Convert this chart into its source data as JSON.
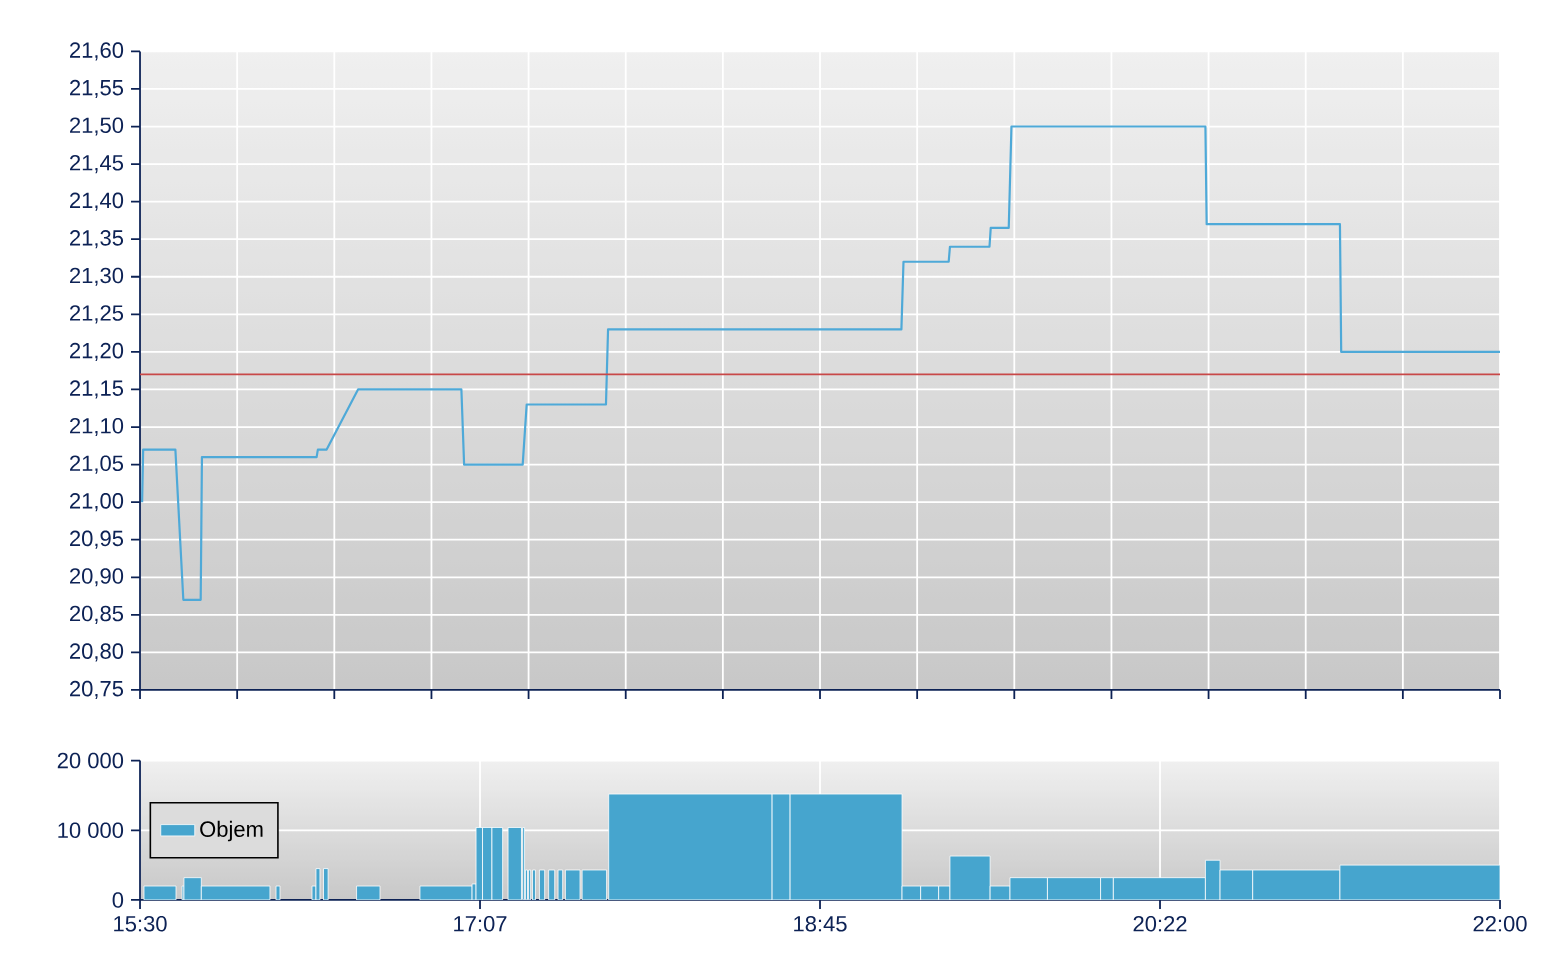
{
  "chart_data": [
    {
      "type": "line",
      "x": [
        15.51,
        15.515,
        15.669,
        15.707,
        15.79,
        15.796,
        16.344,
        16.35,
        16.392,
        16.542,
        17.036,
        17.049,
        17.329,
        17.348,
        17.727,
        17.737,
        19.139,
        19.149,
        19.365,
        19.371,
        19.56,
        19.566,
        19.652,
        19.665,
        20.592,
        20.598,
        21.235,
        21.241,
        22.0
      ],
      "values": [
        21.0,
        21.07,
        21.07,
        20.87,
        20.87,
        21.06,
        21.06,
        21.07,
        21.07,
        21.15,
        21.15,
        21.05,
        21.05,
        21.13,
        21.13,
        21.23,
        21.23,
        21.32,
        21.32,
        21.34,
        21.34,
        21.365,
        21.365,
        21.5,
        21.5,
        21.37,
        21.37,
        21.2,
        21.2
      ],
      "color": "#4ea9d8",
      "xlim": [
        15.5,
        22.0
      ],
      "xticks": [
        {
          "value": 15.5,
          "label": null
        },
        {
          "value": 15.9643,
          "label": null
        },
        {
          "value": 16.4286,
          "label": null
        },
        {
          "value": 16.8929,
          "label": null
        },
        {
          "value": 17.3571,
          "label": null
        },
        {
          "value": 17.8214,
          "label": null
        },
        {
          "value": 18.2857,
          "label": null
        },
        {
          "value": 18.75,
          "label": null
        },
        {
          "value": 19.2143,
          "label": null
        },
        {
          "value": 19.6786,
          "label": null
        },
        {
          "value": 20.1429,
          "label": null
        },
        {
          "value": 20.6071,
          "label": null
        },
        {
          "value": 21.0714,
          "label": null
        },
        {
          "value": 21.5357,
          "label": null
        },
        {
          "value": 22.0,
          "label": null
        }
      ],
      "ylim": [
        20.75,
        21.6
      ],
      "yticks": [
        {
          "value": 20.75,
          "label": "20,75"
        },
        {
          "value": 20.8,
          "label": "20,80"
        },
        {
          "value": 20.85,
          "label": "20,85"
        },
        {
          "value": 20.9,
          "label": "20,90"
        },
        {
          "value": 20.95,
          "label": "20,95"
        },
        {
          "value": 21.0,
          "label": "21,00"
        },
        {
          "value": 21.05,
          "label": "21,05"
        },
        {
          "value": 21.1,
          "label": "21,10"
        },
        {
          "value": 21.15,
          "label": "21,15"
        },
        {
          "value": 21.2,
          "label": "21,20"
        },
        {
          "value": 21.25,
          "label": "21,25"
        },
        {
          "value": 21.3,
          "label": "21,30"
        },
        {
          "value": 21.35,
          "label": "21,35"
        },
        {
          "value": 21.4,
          "label": "21,40"
        },
        {
          "value": 21.45,
          "label": "21,45"
        },
        {
          "value": 21.5,
          "label": "21,50"
        },
        {
          "value": 21.55,
          "label": "21,55"
        },
        {
          "value": 21.6,
          "label": "21,60"
        }
      ],
      "grid": true,
      "tick_labels": "y",
      "ref_lines": [
        {
          "axis": "y",
          "value": 21.17,
          "color": "#c84848"
        }
      ]
    },
    {
      "type": "histogram",
      "bins": [
        15.519,
        15.672,
        15.701,
        15.71,
        15.793,
        16.121,
        16.15,
        16.169,
        16.322,
        16.341,
        16.36,
        16.377,
        16.399,
        16.535,
        16.647,
        16.838,
        17.087,
        17.106,
        17.137,
        17.182,
        17.233,
        17.259,
        17.323,
        17.329,
        17.338,
        17.342,
        17.352,
        17.357,
        17.367,
        17.376,
        17.39,
        17.409,
        17.434,
        17.453,
        17.482,
        17.498,
        17.52,
        17.533,
        17.603,
        17.613,
        17.73,
        17.74,
        18.521,
        18.607,
        19.142,
        19.231,
        19.317,
        19.371,
        19.563,
        19.658,
        19.837,
        20.091,
        20.152,
        20.592,
        20.662,
        20.818,
        21.235,
        22.0
      ],
      "series": [
        {
          "name": "Objem",
          "color": "#46a5ce",
          "values": [
            2000,
            null,
            2000,
            3200,
            2000,
            null,
            2000,
            null,
            2000,
            4500,
            null,
            4500,
            null,
            2000,
            null,
            2000,
            2300,
            10400,
            10400,
            10400,
            null,
            10400,
            null,
            10400,
            null,
            4300,
            null,
            4300,
            null,
            4300,
            null,
            4300,
            null,
            4300,
            null,
            4300,
            null,
            4300,
            null,
            4300,
            null,
            15200,
            15200,
            15200,
            2000,
            2000,
            2000,
            6300,
            2000,
            3200,
            3200,
            3200,
            3200,
            5700,
            4300,
            4300,
            5000
          ]
        }
      ],
      "xlim": [
        15.5,
        22.0
      ],
      "xticks": [
        {
          "value": 15.5,
          "label": "15:30"
        },
        {
          "value": 17.125,
          "label": "17:07"
        },
        {
          "value": 18.75,
          "label": "18:45"
        },
        {
          "value": 20.375,
          "label": "20:22"
        },
        {
          "value": 22.0,
          "label": "22:00"
        }
      ],
      "ylim": [
        0,
        20000
      ],
      "yticks": [
        0,
        {
          "value": 10000,
          "label": "10 000"
        },
        {
          "value": 20000,
          "label": "20 000"
        }
      ],
      "grid": true,
      "legend": "left"
    }
  ]
}
